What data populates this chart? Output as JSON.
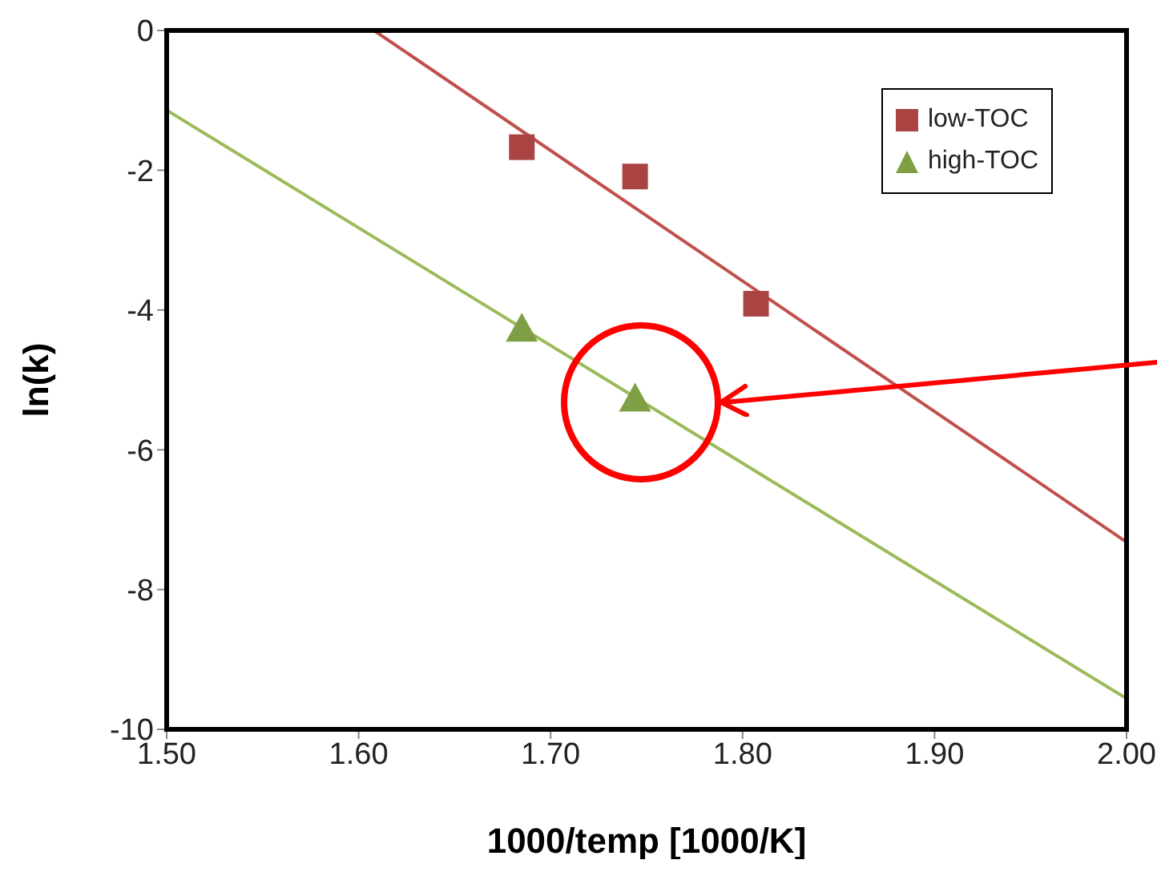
{
  "chart_data": {
    "type": "scatter",
    "xlabel": "1000/temp [1000/K]",
    "ylabel": "ln(k)",
    "xlim": [
      1.5,
      2.0
    ],
    "ylim": [
      -10,
      0
    ],
    "xticks": [
      {
        "value": 1.5,
        "label": "1.50"
      },
      {
        "value": 1.6,
        "label": "1.60"
      },
      {
        "value": 1.7,
        "label": "1.70"
      },
      {
        "value": 1.8,
        "label": "1.80"
      },
      {
        "value": 1.9,
        "label": "1.90"
      },
      {
        "value": 2.0,
        "label": "2.00"
      }
    ],
    "yticks": [
      0,
      -2,
      -4,
      -6,
      -8,
      -10
    ],
    "grid": false,
    "legend": "top right",
    "series": [
      {
        "name": "low-TOC",
        "type": "scatter",
        "marker": "square",
        "color": "#a94442",
        "x": [
          1.685,
          1.744,
          1.807
        ],
        "values": [
          -1.67,
          -2.09,
          -3.91
        ]
      },
      {
        "name": "high-TOC",
        "type": "scatter",
        "marker": "triangle",
        "color": "#7f9f45",
        "x": [
          1.685,
          1.744
        ],
        "values": [
          -4.27,
          -5.27
        ]
      },
      {
        "type": "line",
        "marker": "none",
        "color": "#c0504d",
        "x": [
          1.608,
          2.0
        ],
        "values": [
          0,
          -7.32
        ]
      },
      {
        "type": "line",
        "marker": "none",
        "color": "#9bbb59",
        "x": [
          1.5,
          2.0
        ],
        "values": [
          -1.14,
          -9.56
        ]
      }
    ]
  }
}
